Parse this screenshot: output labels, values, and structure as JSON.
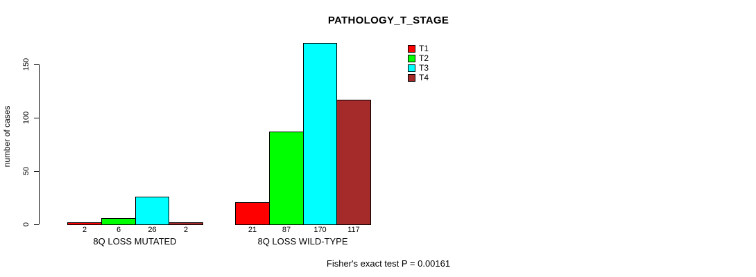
{
  "title": "PATHOLOGY_T_STAGE",
  "annotation": "Fisher's exact test P = 0.00161",
  "chart_data": {
    "type": "bar",
    "title": "PATHOLOGY_T_STAGE",
    "xlabel": "",
    "ylabel": "number of cases",
    "yticks": [
      0,
      50,
      100,
      150
    ],
    "ylim": [
      0,
      175
    ],
    "grid": false,
    "legend_position": "top-right",
    "categories": [
      "8Q LOSS MUTATED",
      "8Q LOSS WILD-TYPE"
    ],
    "series": [
      {
        "name": "T1",
        "color": "#FF0000",
        "values": [
          2,
          21
        ]
      },
      {
        "name": "T2",
        "color": "#00FF00",
        "values": [
          6,
          87
        ]
      },
      {
        "name": "T3",
        "color": "#00FFFF",
        "values": [
          26,
          170
        ]
      },
      {
        "name": "T4",
        "color": "#A52A2A",
        "values": [
          2,
          117
        ]
      }
    ],
    "bar_value_labels": [
      [
        "2",
        "6",
        "26",
        "2"
      ],
      [
        "21",
        "87",
        "170",
        "117"
      ]
    ],
    "footnote": "Fisher's exact test P = 0.00161"
  }
}
